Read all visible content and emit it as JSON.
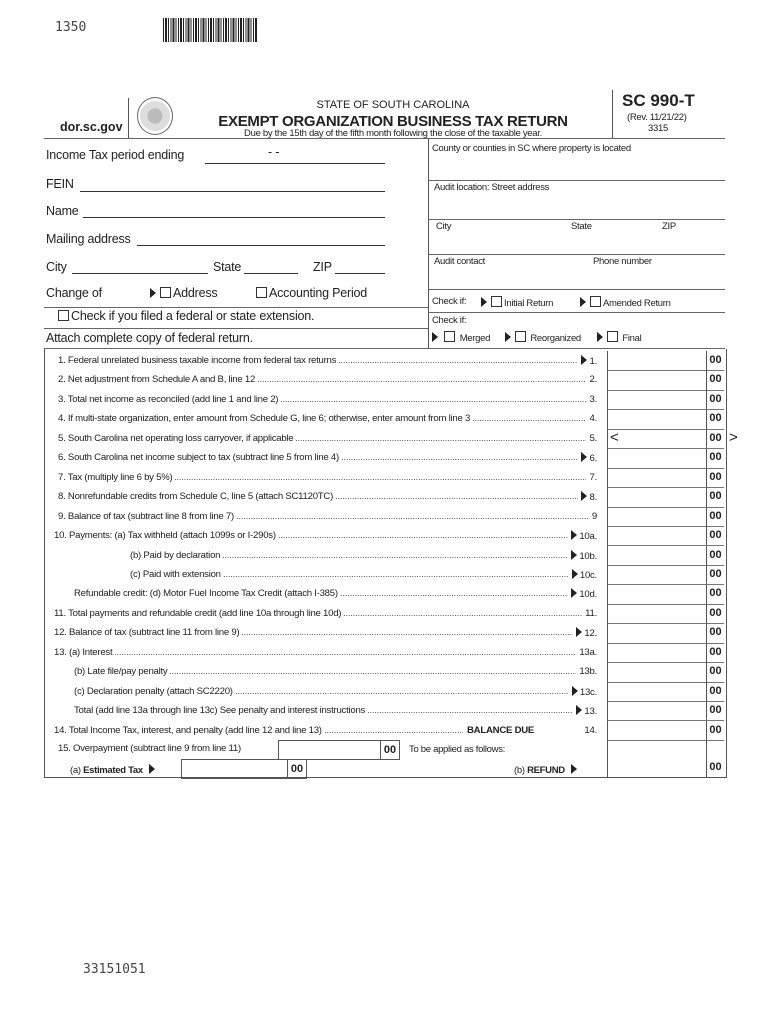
{
  "header": {
    "form_code_top": "1350",
    "website": "dor.sc.gov",
    "state": "STATE OF SOUTH CAROLINA",
    "title": "EXEMPT ORGANIZATION BUSINESS TAX RETURN",
    "due_note": "Due by the 15th day of the fifth month following the close of the taxable year.",
    "form_number": "SC 990-T",
    "revision": "(Rev. 11/21/22)",
    "form_id": "3315"
  },
  "left": {
    "period_label": "Income Tax period ending",
    "period_value": "-    -",
    "fein_label": "FEIN",
    "name_label": "Name",
    "mailing_label": "Mailing address",
    "city_label": "City",
    "state_label": "State",
    "zip_label": "ZIP",
    "change_label": "Change of",
    "address_label": "Address",
    "accounting_label": "Accounting Period",
    "extension_label": "Check if you filed a federal or state extension.",
    "attach_label": "Attach complete copy of federal return."
  },
  "right": {
    "county_label": "County or counties in SC where property is located",
    "audit_street_label": "Audit location: Street address",
    "city_label": "City",
    "state_label": "State",
    "zip_label": "ZIP",
    "audit_contact_label": "Audit contact",
    "phone_label": "Phone number",
    "check_if_label": "Check if:",
    "initial_return": "Initial Return",
    "amended_return": "Amended Return",
    "check_if2_label": "Check if:",
    "merged": "Merged",
    "reorganized": "Reorganized",
    "final": "Final"
  },
  "lines": [
    {
      "label": "1. Federal unrelated business taxable income from federal tax returns",
      "num": "1.",
      "arrow": true,
      "indent": 0,
      "cents": "00"
    },
    {
      "label": "2. Net adjustment from Schedule A and B, line 12",
      "num": "2.",
      "arrow": false,
      "indent": 0,
      "cents": "00"
    },
    {
      "label": "3. Total net income as reconciled (add line 1 and line 2)",
      "num": "3.",
      "arrow": false,
      "indent": 0,
      "cents": "00"
    },
    {
      "label": "4. If multi-state organization, enter amount from Schedule G, line 6; otherwise, enter amount from line 3",
      "num": "4.",
      "arrow": false,
      "indent": 0,
      "cents": "00"
    },
    {
      "label": "5. South Carolina net operating loss carryover, if applicable",
      "num": "5.",
      "arrow": false,
      "indent": 0,
      "cents": "00",
      "bracket": true
    },
    {
      "label": "6. South Carolina net income subject to tax (subtract line 5 from line 4)",
      "num": "6.",
      "arrow": true,
      "indent": 0,
      "cents": "00"
    },
    {
      "label": "7. Tax (multiply line 6 by 5%)",
      "num": "7.",
      "arrow": false,
      "indent": 0,
      "cents": "00"
    },
    {
      "label": "8. Nonrefundable credits from Schedule C, line 5 (attach SC1120TC)",
      "num": "8.",
      "arrow": true,
      "indent": 0,
      "cents": "00"
    },
    {
      "label": "9. Balance of tax (subtract line 8 from line 7)",
      "num": "9",
      "arrow": false,
      "indent": 0,
      "cents": "00"
    },
    {
      "label": "10. Payments:  (a) Tax withheld (attach 1099s or I-290s)",
      "num": "10a.",
      "arrow": true,
      "indent": -4,
      "cents": "00"
    },
    {
      "label": "(b) Paid by declaration",
      "num": "10b.",
      "arrow": true,
      "indent": 72,
      "cents": "00"
    },
    {
      "label": "(c) Paid with extension",
      "num": "10c.",
      "arrow": true,
      "indent": 72,
      "cents": "00"
    },
    {
      "label": "Refundable credit: (d) Motor Fuel Income Tax Credit (attach I-385)",
      "num": "10d.",
      "arrow": true,
      "indent": 16,
      "cents": "00"
    },
    {
      "label": "11. Total payments and refundable credit (add line 10a through line 10d)",
      "num": "11.",
      "arrow": false,
      "indent": -4,
      "cents": "00"
    },
    {
      "label": "12. Balance of tax (subtract line 11 from line 9)",
      "num": "12.",
      "arrow": true,
      "indent": -4,
      "cents": "00"
    },
    {
      "label": "13. (a) Interest",
      "num": "13a.",
      "arrow": false,
      "indent": -4,
      "cents": "00"
    },
    {
      "label": "(b) Late file/pay penalty",
      "num": "13b.",
      "arrow": false,
      "indent": 16,
      "cents": "00"
    },
    {
      "label": "(c) Declaration penalty (attach SC2220)",
      "num": "13c.",
      "arrow": true,
      "indent": 16,
      "cents": "00"
    },
    {
      "label": "Total (add line 13a through line 13c) See penalty and interest instructions",
      "num": "13.",
      "arrow": true,
      "indent": 16,
      "cents": "00"
    },
    {
      "label": "14. Total Income Tax, interest, and penalty (add line 12 and line 13)",
      "num": "14.",
      "arrow": false,
      "indent": -4,
      "cents": "00",
      "tail": "BALANCE DUE"
    }
  ],
  "line15": {
    "label": "15. Overpayment (subtract line 9 from line 11)",
    "cents": "00",
    "applied": "To be applied as follows:",
    "est_prefix": "(a)",
    "est_label": "Estimated Tax",
    "est_cents": "00",
    "refund_prefix": "(b)",
    "refund_label": "REFUND",
    "refund_cents": "00"
  },
  "footer": {
    "code": "33151051"
  }
}
